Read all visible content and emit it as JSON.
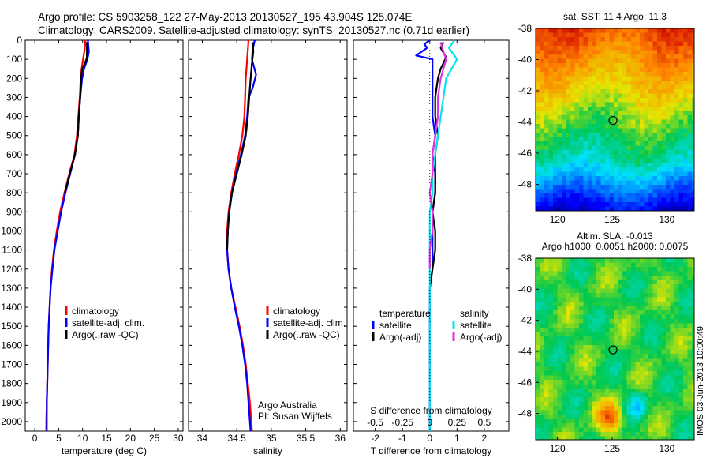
{
  "header": {
    "line1": "Argo profile: CS 5903258_122 27-May-2013 20130527_195 43.904S 125.074E",
    "line2": "Climatology: CARS2009. Satellite-adjusted climatology: synTS_20130527.nc (0.71d earlier)"
  },
  "colors": {
    "climatology": "#ff0000",
    "satellite": "#0000ff",
    "argo": "#000000",
    "sat_salinity": "#00e5ee",
    "argo_salinity": "#e030e0"
  },
  "side_text": "IMOS 03-Jun-2013 10:00:49",
  "credit": {
    "line1": "Argo Australia",
    "line2": "PI: Susan Wijffels"
  },
  "chart_data": [
    {
      "type": "line",
      "name": "temperature-profile",
      "xlabel": "temperature (deg C)",
      "ylabel": "",
      "xlim": [
        -2,
        31
      ],
      "ylim": [
        2050,
        0
      ],
      "xticks": [
        0,
        5,
        10,
        15,
        20,
        25,
        30
      ],
      "yticks": [
        0,
        100,
        200,
        300,
        400,
        500,
        600,
        700,
        800,
        900,
        1000,
        1100,
        1200,
        1300,
        1400,
        1500,
        1600,
        1700,
        1800,
        1900,
        2000
      ],
      "legend": [
        "climatology",
        "satellite-adj. clim.",
        "Argo(..raw -QC)"
      ],
      "series": [
        {
          "name": "climatology",
          "color": "#ff0000",
          "points": [
            [
              10.6,
              0
            ],
            [
              10.4,
              50
            ],
            [
              10.1,
              100
            ],
            [
              9.8,
              150
            ],
            [
              9.6,
              200
            ],
            [
              9.4,
              300
            ],
            [
              9.1,
              400
            ],
            [
              8.8,
              500
            ],
            [
              8.3,
              600
            ],
            [
              7.2,
              700
            ],
            [
              6.2,
              800
            ],
            [
              5.3,
              900
            ],
            [
              4.6,
              1000
            ],
            [
              4.0,
              1100
            ],
            [
              3.6,
              1200
            ],
            [
              3.3,
              1300
            ],
            [
              3.1,
              1400
            ],
            [
              2.9,
              1500
            ],
            [
              2.8,
              1600
            ],
            [
              2.7,
              1700
            ],
            [
              2.6,
              1800
            ],
            [
              2.5,
              1900
            ],
            [
              2.4,
              2000
            ],
            [
              2.4,
              2050
            ]
          ]
        },
        {
          "name": "satellite-adj. clim.",
          "color": "#0000ff",
          "points": [
            [
              11.1,
              0
            ],
            [
              11.3,
              60
            ],
            [
              11.0,
              100
            ],
            [
              10.3,
              150
            ],
            [
              9.9,
              200
            ],
            [
              9.5,
              300
            ],
            [
              9.2,
              400
            ],
            [
              9.0,
              500
            ],
            [
              8.4,
              600
            ],
            [
              7.4,
              700
            ],
            [
              6.4,
              800
            ],
            [
              5.5,
              900
            ],
            [
              4.8,
              1000
            ],
            [
              4.1,
              1100
            ],
            [
              3.7,
              1200
            ],
            [
              3.3,
              1300
            ],
            [
              3.1,
              1400
            ],
            [
              2.9,
              1500
            ],
            [
              2.8,
              1600
            ],
            [
              2.7,
              1700
            ],
            [
              2.6,
              1800
            ],
            [
              2.5,
              1900
            ],
            [
              2.5,
              2000
            ],
            [
              2.5,
              2050
            ]
          ]
        },
        {
          "name": "Argo(..raw -QC)",
          "color": "#000000",
          "points": [
            [
              10.9,
              10
            ],
            [
              10.9,
              50
            ],
            [
              10.9,
              90
            ],
            [
              10.5,
              120
            ],
            [
              9.9,
              150
            ],
            [
              9.7,
              200
            ],
            [
              9.5,
              300
            ],
            [
              9.2,
              400
            ],
            [
              9.0,
              500
            ],
            [
              8.4,
              600
            ],
            [
              7.3,
              700
            ],
            [
              6.3,
              800
            ]
          ]
        }
      ]
    },
    {
      "type": "line",
      "name": "salinity-profile",
      "xlabel": "salinity",
      "xlim": [
        33.8,
        36.1
      ],
      "ylim": [
        2050,
        0
      ],
      "xticks": [
        34,
        34.5,
        35,
        35.5,
        36
      ],
      "legend": [
        "climatology",
        "satellite-adj. clim.",
        "Argo(..raw -QC)"
      ],
      "series": [
        {
          "name": "climatology",
          "color": "#ff0000",
          "points": [
            [
              34.67,
              0
            ],
            [
              34.66,
              50
            ],
            [
              34.65,
              100
            ],
            [
              34.64,
              150
            ],
            [
              34.63,
              200
            ],
            [
              34.62,
              300
            ],
            [
              34.61,
              400
            ],
            [
              34.58,
              500
            ],
            [
              34.53,
              600
            ],
            [
              34.47,
              700
            ],
            [
              34.42,
              800
            ],
            [
              34.38,
              900
            ],
            [
              34.36,
              1000
            ],
            [
              34.36,
              1100
            ],
            [
              34.38,
              1200
            ],
            [
              34.42,
              1300
            ],
            [
              34.48,
              1400
            ],
            [
              34.54,
              1500
            ],
            [
              34.59,
              1600
            ],
            [
              34.63,
              1700
            ],
            [
              34.66,
              1800
            ],
            [
              34.69,
              1900
            ],
            [
              34.71,
              2000
            ],
            [
              34.72,
              2050
            ]
          ]
        },
        {
          "name": "satellite-adj. clim.",
          "color": "#0000ff",
          "points": [
            [
              34.76,
              0
            ],
            [
              34.73,
              50
            ],
            [
              34.72,
              100
            ],
            [
              34.78,
              180
            ],
            [
              34.73,
              250
            ],
            [
              34.67,
              300
            ],
            [
              34.65,
              400
            ],
            [
              34.62,
              500
            ],
            [
              34.56,
              600
            ],
            [
              34.49,
              700
            ],
            [
              34.43,
              800
            ],
            [
              34.39,
              900
            ],
            [
              34.37,
              1000
            ],
            [
              34.36,
              1100
            ],
            [
              34.38,
              1200
            ],
            [
              34.42,
              1300
            ],
            [
              34.47,
              1400
            ],
            [
              34.53,
              1500
            ],
            [
              34.58,
              1600
            ],
            [
              34.62,
              1700
            ],
            [
              34.65,
              1800
            ],
            [
              34.67,
              1900
            ],
            [
              34.69,
              2000
            ],
            [
              34.7,
              2050
            ]
          ]
        },
        {
          "name": "Argo(..raw -QC)",
          "color": "#000000",
          "points": [
            [
              34.73,
              10
            ],
            [
              34.74,
              60
            ],
            [
              34.72,
              120
            ],
            [
              34.7,
              200
            ],
            [
              34.68,
              300
            ],
            [
              34.66,
              400
            ],
            [
              34.63,
              500
            ],
            [
              34.57,
              600
            ],
            [
              34.5,
              700
            ],
            [
              34.43,
              800
            ],
            [
              34.39,
              900
            ],
            [
              34.37,
              1000
            ],
            [
              34.36,
              1100
            ]
          ]
        }
      ]
    },
    {
      "type": "line",
      "name": "difference-profile",
      "xlabel": "T difference from climatology",
      "xlabel_top": "S difference from climatology",
      "xlim": [
        -2.8,
        2.9
      ],
      "ylim": [
        2050,
        0
      ],
      "xticks": [
        -2,
        -1,
        0,
        1,
        2
      ],
      "top_ticks": [
        "-0.5",
        "-0.25",
        "0",
        "0.25",
        "0.5"
      ],
      "top_tick_positions": [
        -2,
        -1,
        0,
        1,
        2
      ],
      "legend_temperature": {
        "title": "temperature",
        "items": [
          "satellite",
          "Argo(-adj)"
        ]
      },
      "legend_salinity": {
        "title": "salinity",
        "items": [
          "satellite",
          "Argo(-adj)"
        ]
      },
      "series": [
        {
          "name": "T satellite",
          "color": "#0000ff",
          "points": [
            [
              0,
              0
            ],
            [
              -0.2,
              20
            ],
            [
              -0.1,
              40
            ],
            [
              -0.3,
              60
            ],
            [
              -0.5,
              80
            ],
            [
              0.1,
              100
            ],
            [
              0.1,
              200
            ],
            [
              0.1,
              300
            ],
            [
              0.1,
              400
            ],
            [
              0.2,
              500
            ],
            [
              0.1,
              600
            ],
            [
              0.2,
              700
            ],
            [
              0.2,
              800
            ],
            [
              0.1,
              900
            ],
            [
              0.1,
              1000
            ],
            [
              0.1,
              1100
            ],
            [
              0.1,
              1200
            ],
            [
              0,
              1300
            ],
            [
              0,
              1500
            ],
            [
              0,
              2050
            ]
          ]
        },
        {
          "name": "T Argo(-adj)",
          "color": "#000000",
          "points": [
            [
              0.5,
              10
            ],
            [
              0.4,
              40
            ],
            [
              0.6,
              90
            ],
            [
              0.4,
              150
            ],
            [
              0.3,
              200
            ],
            [
              0.2,
              300
            ],
            [
              0.2,
              400
            ],
            [
              0.3,
              500
            ],
            [
              0.2,
              600
            ],
            [
              0.2,
              700
            ],
            [
              0.2,
              800
            ],
            [
              0.1,
              900
            ],
            [
              0.2,
              1000
            ],
            [
              0.2,
              1100
            ],
            [
              0.1,
              1200
            ],
            [
              0,
              1300
            ]
          ]
        },
        {
          "name": "S satellite",
          "color": "#00e5ee",
          "points": [
            [
              0.9,
              0
            ],
            [
              0.7,
              40
            ],
            [
              0.9,
              80
            ],
            [
              1.0,
              100
            ],
            [
              0.8,
              150
            ],
            [
              0.6,
              200
            ],
            [
              0.5,
              300
            ],
            [
              0.4,
              400
            ],
            [
              0.3,
              500
            ],
            [
              0.2,
              600
            ],
            [
              0.1,
              700
            ],
            [
              0.1,
              800
            ],
            [
              0,
              900
            ],
            [
              0,
              1100
            ],
            [
              0,
              1300
            ],
            [
              0,
              2050
            ]
          ]
        },
        {
          "name": "S Argo(-adj)",
          "color": "#e030e0",
          "points": [
            [
              0.4,
              10
            ],
            [
              0.5,
              60
            ],
            [
              0.6,
              100
            ],
            [
              0.4,
              200
            ],
            [
              0.3,
              300
            ],
            [
              0.3,
              400
            ],
            [
              0.2,
              500
            ],
            [
              0.1,
              600
            ],
            [
              0.1,
              700
            ],
            [
              0,
              800
            ],
            [
              0.1,
              900
            ],
            [
              0.1,
              1000
            ],
            [
              0,
              1100
            ],
            [
              0,
              1200
            ]
          ]
        }
      ]
    },
    {
      "type": "heatmap",
      "name": "sst-map",
      "title": "sat. SST: 11.4  Argo: 11.3",
      "xlim": [
        118,
        132.5
      ],
      "ylim": [
        -49.7,
        -38
      ],
      "xticks": [
        120,
        125,
        130
      ],
      "yticks": [
        -38,
        -40,
        -42,
        -44,
        -46,
        -48
      ],
      "marker": {
        "lon": 125.074,
        "lat": -43.904
      }
    },
    {
      "type": "heatmap",
      "name": "sla-map",
      "title_line1": "Altim. SLA: -0.013",
      "title_line2": "Argo h1000: 0.0051  h2000: 0.0075",
      "xlim": [
        118,
        132.5
      ],
      "ylim": [
        -49.7,
        -38
      ],
      "xticks": [
        120,
        125,
        130
      ],
      "yticks": [
        -38,
        -40,
        -42,
        -44,
        -46,
        -48
      ],
      "marker": {
        "lon": 125.074,
        "lat": -43.904
      }
    }
  ]
}
